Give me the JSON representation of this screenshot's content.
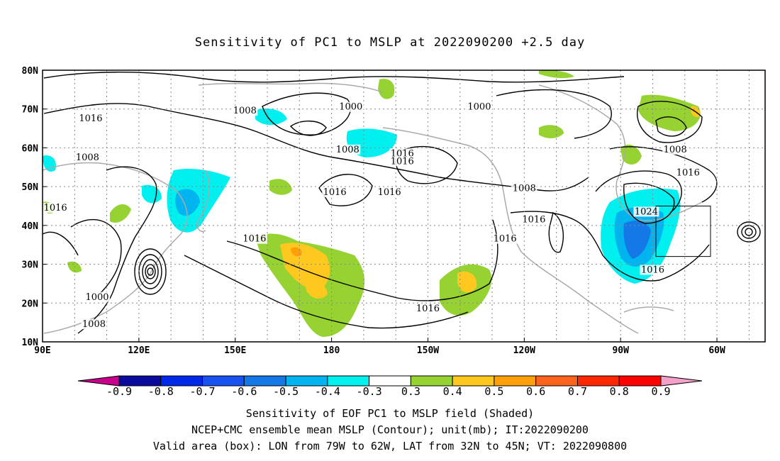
{
  "title": "Sensitivity of PC1 to MSLP at 2022090200 +2.5 day",
  "lat_labels": [
    "80N",
    "70N",
    "60N",
    "50N",
    "40N",
    "30N",
    "20N",
    "10N"
  ],
  "lon_labels": [
    "90E",
    "120E",
    "150E",
    "180",
    "150W",
    "120W",
    "90W",
    "60W"
  ],
  "contour_labels": [
    {
      "text": "1016",
      "lon": 105,
      "lat": 67
    },
    {
      "text": "1008",
      "lon": 153,
      "lat": 69
    },
    {
      "text": "1000",
      "lon": -174,
      "lat": 70
    },
    {
      "text": "1000",
      "lon": -134,
      "lat": 70
    },
    {
      "text": "1008",
      "lon": -175,
      "lat": 59
    },
    {
      "text": "1016",
      "lon": -158,
      "lat": 58
    },
    {
      "text": "1008",
      "lon": 104,
      "lat": 57
    },
    {
      "text": "1016",
      "lon": -179,
      "lat": 48
    },
    {
      "text": "1016",
      "lon": -158,
      "lat": 56
    },
    {
      "text": "1016",
      "lon": -162,
      "lat": 48
    },
    {
      "text": "1016",
      "lon": 94,
      "lat": 44
    },
    {
      "text": "1016",
      "lon": 156,
      "lat": 36
    },
    {
      "text": "1000",
      "lon": 107,
      "lat": 21
    },
    {
      "text": "1008",
      "lon": 106,
      "lat": 14
    },
    {
      "text": "1016",
      "lon": -150,
      "lat": 18
    },
    {
      "text": "1008",
      "lon": -120,
      "lat": 49
    },
    {
      "text": "1016",
      "lon": -117,
      "lat": 41
    },
    {
      "text": "1016",
      "lon": -126,
      "lat": 36
    },
    {
      "text": "1024",
      "lon": -82,
      "lat": 43
    },
    {
      "text": "1016",
      "lon": -80,
      "lat": 28
    },
    {
      "text": "1008",
      "lon": -73,
      "lat": 59
    },
    {
      "text": "1016",
      "lon": -69,
      "lat": 53
    }
  ],
  "colorbar": {
    "labels": [
      "-0.9",
      "-0.8",
      "-0.7",
      "-0.6",
      "-0.5",
      "-0.4",
      "-0.3",
      "0.3",
      "0.4",
      "0.5",
      "0.6",
      "0.7",
      "0.8",
      "0.9"
    ],
    "colors": [
      "#0a0a9c",
      "#0028e8",
      "#1852f0",
      "#1478e6",
      "#00b4f0",
      "#00f0f0",
      "#ffffff",
      "#96d232",
      "#ffc81e",
      "#ffa00a",
      "#ff641e",
      "#ff2800",
      "#ff0000"
    ],
    "low_end_color": "#c8008c",
    "high_end_color": "#f5a0c8"
  },
  "captions": [
    "Sensitivity of EOF PC1 to MSLP field (Shaded)",
    "NCEP+CMC ensemble mean MSLP (Contour); unit(mb); IT:2022090200",
    "Valid area (box): LON from 79W to 62W, LAT from 32N to 45N; VT: 2022090800"
  ],
  "valid_box": {
    "lon_min": -79,
    "lon_max": -62,
    "lat_min": 32,
    "lat_max": 45
  }
}
